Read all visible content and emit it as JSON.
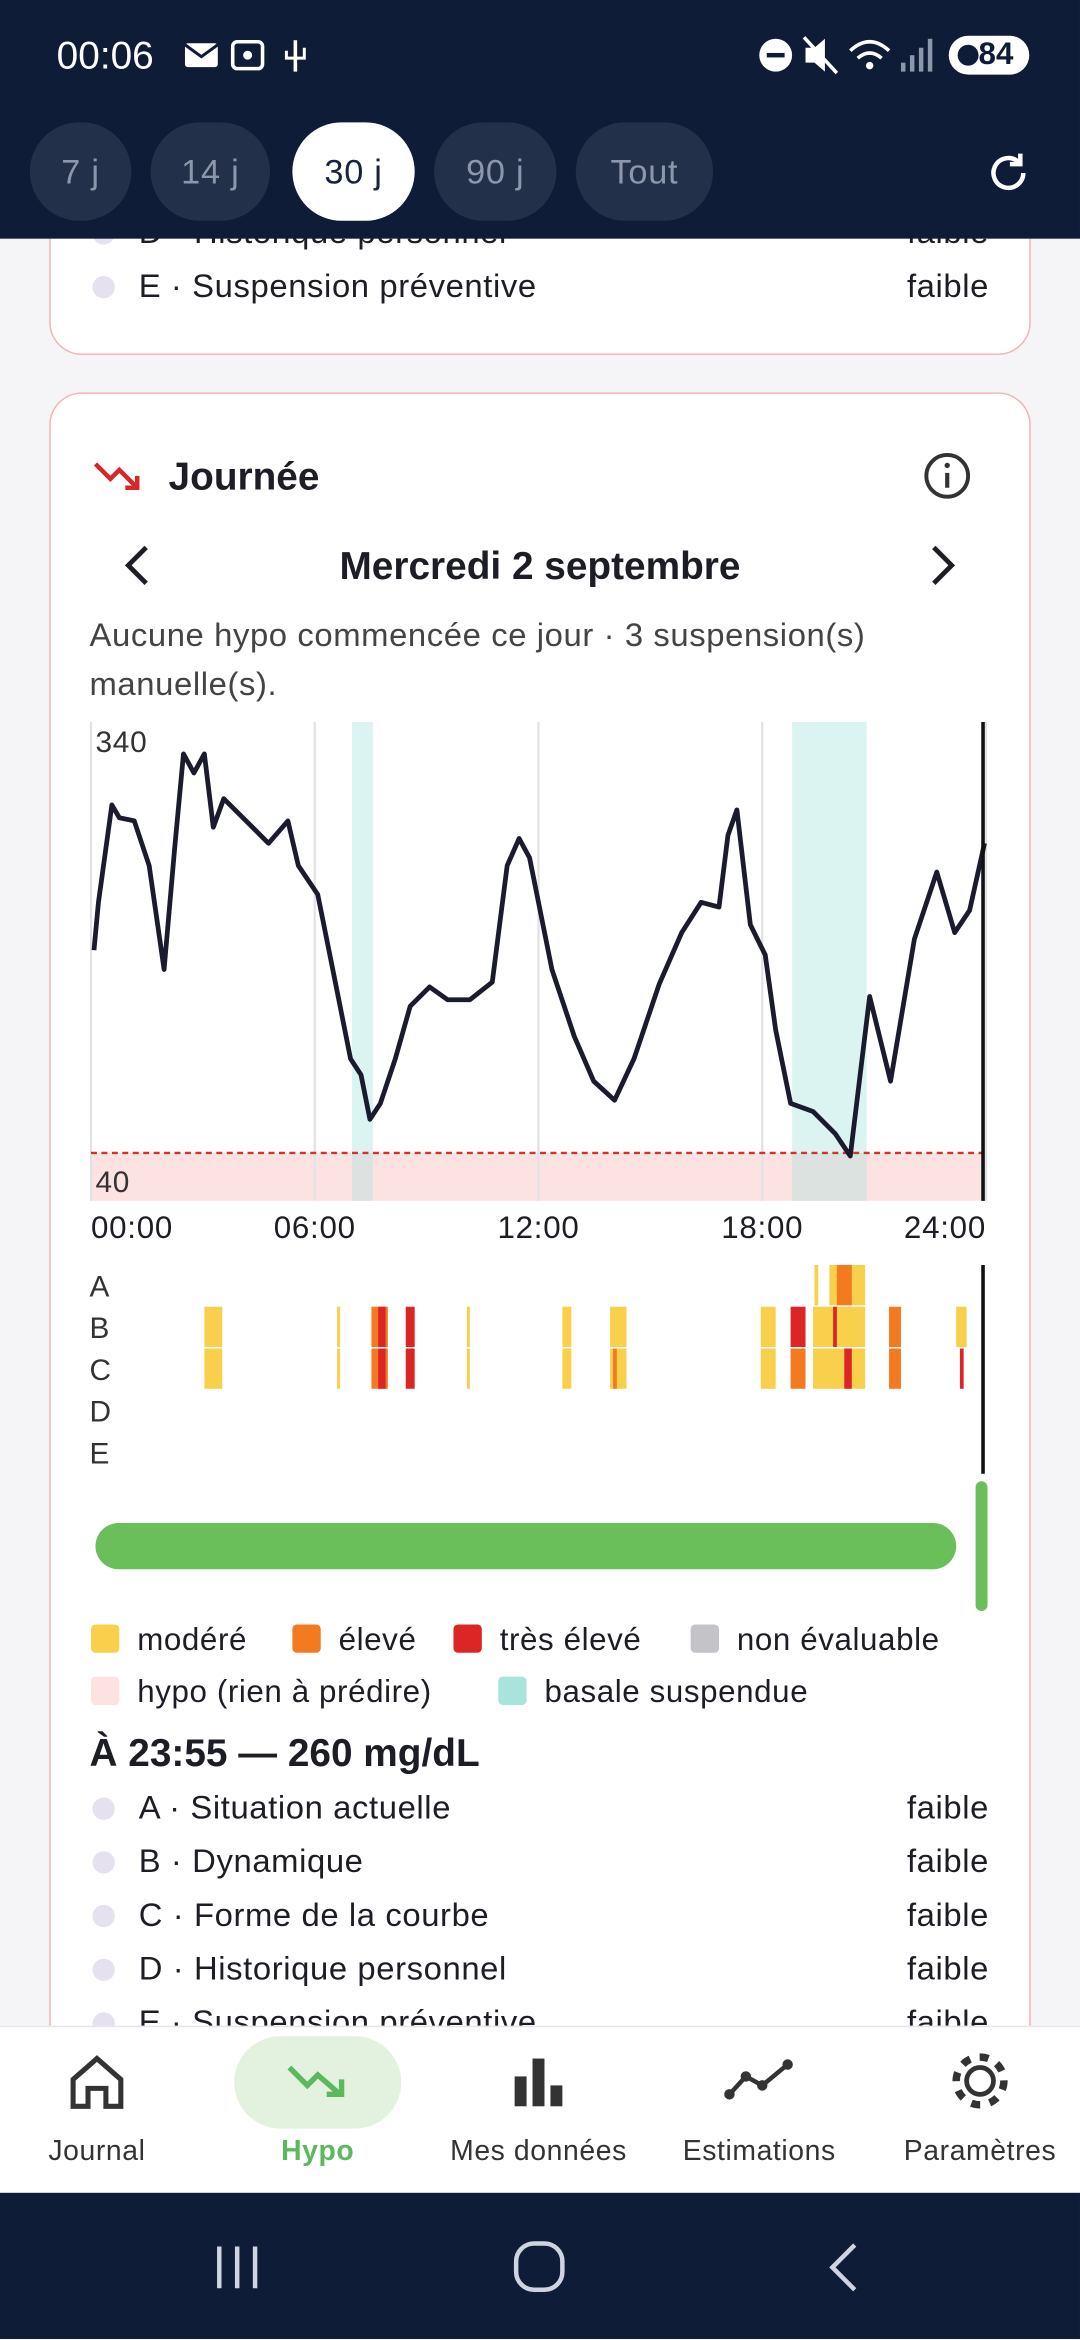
{
  "status_bar": {
    "time": "00:06",
    "battery": "84"
  },
  "period_tabs": {
    "items": [
      "7 j",
      "14 j",
      "30 j",
      "90 j",
      "Tout"
    ],
    "selected": 2
  },
  "previous_card": {
    "rows": [
      {
        "label": "D · Historique personnel",
        "level": "faible"
      },
      {
        "label": "E · Suspension préventive",
        "level": "faible"
      }
    ]
  },
  "journee": {
    "title": "Journée",
    "date": "Mercredi 2 septembre",
    "summary": "Aucune hypo commencée ce jour · 3 suspension(s) manuelle(s)."
  },
  "chart_data": {
    "type": "line",
    "color": "#1b1b2f",
    "x": [
      0.08,
      0.2,
      0.56,
      0.76,
      1.16,
      1.56,
      1.96,
      2.24,
      2.48,
      2.76,
      3.04,
      3.28,
      3.56,
      4.16,
      4.76,
      5.28,
      5.56,
      6.08,
      6.56,
      6.96,
      7.24,
      7.48,
      7.76,
      8.16,
      8.56,
      9.08,
      9.56,
      10.16,
      10.76,
      11.16,
      11.48,
      11.76,
      12.36,
      12.96,
      13.48,
      14.04,
      14.56,
      15.24,
      15.84,
      16.36,
      16.84,
      17.08,
      17.32,
      17.68,
      18.08,
      18.36,
      18.76,
      19.36,
      19.96,
      20.36,
      20.88,
      21.44,
      22.08,
      22.68,
      23.16,
      23.56,
      23.96
    ],
    "values": [
      197,
      227,
      288,
      280,
      278,
      250,
      185,
      260,
      320,
      308,
      320,
      274,
      292,
      278,
      264,
      278,
      250,
      232,
      176,
      129,
      119,
      91,
      101,
      129,
      162,
      174,
      166,
      166,
      177,
      250,
      267,
      255,
      185,
      143,
      115,
      103,
      129,
      176,
      208,
      227,
      224,
      269,
      285,
      213,
      194,
      147,
      101,
      96,
      82,
      68,
      168,
      115,
      204,
      246,
      208,
      222,
      264
    ],
    "xlim": [
      0,
      24
    ],
    "xticks": [
      {
        "value": 0,
        "label": "00:00"
      },
      {
        "value": 6,
        "label": "06:00"
      },
      {
        "value": 12,
        "label": "12:00"
      },
      {
        "value": 18,
        "label": "18:00"
      },
      {
        "value": 24,
        "label": "24:00"
      }
    ],
    "ylim": [
      40,
      340
    ],
    "yticks": [
      40,
      340
    ],
    "hypo_threshold": 70,
    "suspended": [
      [
        7.0,
        7.56
      ],
      [
        18.8,
        20.8
      ]
    ],
    "cursor": 23.92
  },
  "risk_strip": {
    "rows": [
      "A",
      "B",
      "C",
      "D",
      "E"
    ],
    "segments": [
      {
        "row": 1,
        "start": 3.04,
        "end": 3.52,
        "level": 0
      },
      {
        "row": 2,
        "start": 3.04,
        "end": 3.52,
        "level": 0
      },
      {
        "row": 1,
        "start": 6.6,
        "end": 6.68,
        "level": 0
      },
      {
        "row": 2,
        "start": 6.6,
        "end": 6.68,
        "level": 0
      },
      {
        "row": 1,
        "start": 7.52,
        "end": 7.96,
        "level": 1
      },
      {
        "row": 2,
        "start": 7.52,
        "end": 7.96,
        "level": 1
      },
      {
        "row": 1,
        "start": 7.7,
        "end": 7.9,
        "level": 2
      },
      {
        "row": 2,
        "start": 7.7,
        "end": 7.9,
        "level": 2
      },
      {
        "row": 1,
        "start": 8.44,
        "end": 8.68,
        "level": 2
      },
      {
        "row": 2,
        "start": 8.44,
        "end": 8.68,
        "level": 2
      },
      {
        "row": 1,
        "start": 10.08,
        "end": 10.16,
        "level": 0
      },
      {
        "row": 2,
        "start": 10.08,
        "end": 10.16,
        "level": 0
      },
      {
        "row": 1,
        "start": 12.64,
        "end": 12.88,
        "level": 0
      },
      {
        "row": 2,
        "start": 12.64,
        "end": 12.88,
        "level": 0
      },
      {
        "row": 1,
        "start": 13.92,
        "end": 14.36,
        "level": 0
      },
      {
        "row": 2,
        "start": 13.92,
        "end": 14.36,
        "level": 0
      },
      {
        "row": 2,
        "start": 14.0,
        "end": 14.1,
        "level": 1
      },
      {
        "row": 1,
        "start": 17.96,
        "end": 18.36,
        "level": 0
      },
      {
        "row": 2,
        "start": 17.96,
        "end": 18.36,
        "level": 0
      },
      {
        "row": 1,
        "start": 18.76,
        "end": 19.16,
        "level": 2
      },
      {
        "row": 2,
        "start": 18.76,
        "end": 19.16,
        "level": 1
      },
      {
        "row": 1,
        "start": 19.36,
        "end": 20.76,
        "level": 0
      },
      {
        "row": 2,
        "start": 19.36,
        "end": 20.76,
        "level": 0
      },
      {
        "row": 1,
        "start": 19.9,
        "end": 20.0,
        "level": 2
      },
      {
        "row": 2,
        "start": 20.2,
        "end": 20.4,
        "level": 2
      },
      {
        "row": 1,
        "start": 21.4,
        "end": 21.72,
        "level": 1
      },
      {
        "row": 2,
        "start": 21.4,
        "end": 21.72,
        "level": 1
      },
      {
        "row": 1,
        "start": 23.2,
        "end": 23.48,
        "level": 0
      },
      {
        "row": 2,
        "start": 23.3,
        "end": 23.4,
        "level": 2
      },
      {
        "row": 0,
        "start": 19.4,
        "end": 19.5,
        "level": 0
      },
      {
        "row": 0,
        "start": 19.8,
        "end": 20.76,
        "level": 0
      },
      {
        "row": 0,
        "start": 20.0,
        "end": 20.4,
        "level": 1
      }
    ]
  },
  "legend": {
    "items": [
      {
        "name": "modéré",
        "color": "#f9d04b"
      },
      {
        "name": "élevé",
        "color": "#f47a1f"
      },
      {
        "name": "très élevé",
        "color": "#dc2626"
      },
      {
        "name": "non évaluable",
        "color": "#c4c4c8"
      },
      {
        "name": "hypo (rien à prédire)",
        "color": "#fde2e2"
      },
      {
        "name": "basale suspendue",
        "color": "#a8e4dc"
      }
    ]
  },
  "detail": {
    "heading": "À 23:55 — 260 mg/dL",
    "rows": [
      {
        "label": "A · Situation actuelle",
        "level": "faible"
      },
      {
        "label": "B · Dynamique",
        "level": "faible"
      },
      {
        "label": "C · Forme de la courbe",
        "level": "faible"
      },
      {
        "label": "D · Historique personnel",
        "level": "faible"
      },
      {
        "label": "E · Suspension préventive",
        "level": "faible"
      }
    ]
  },
  "bottom_nav": {
    "items": [
      "Journal",
      "Hypo",
      "Mes données",
      "Estimations",
      "Paramètres"
    ],
    "selected": 1
  }
}
